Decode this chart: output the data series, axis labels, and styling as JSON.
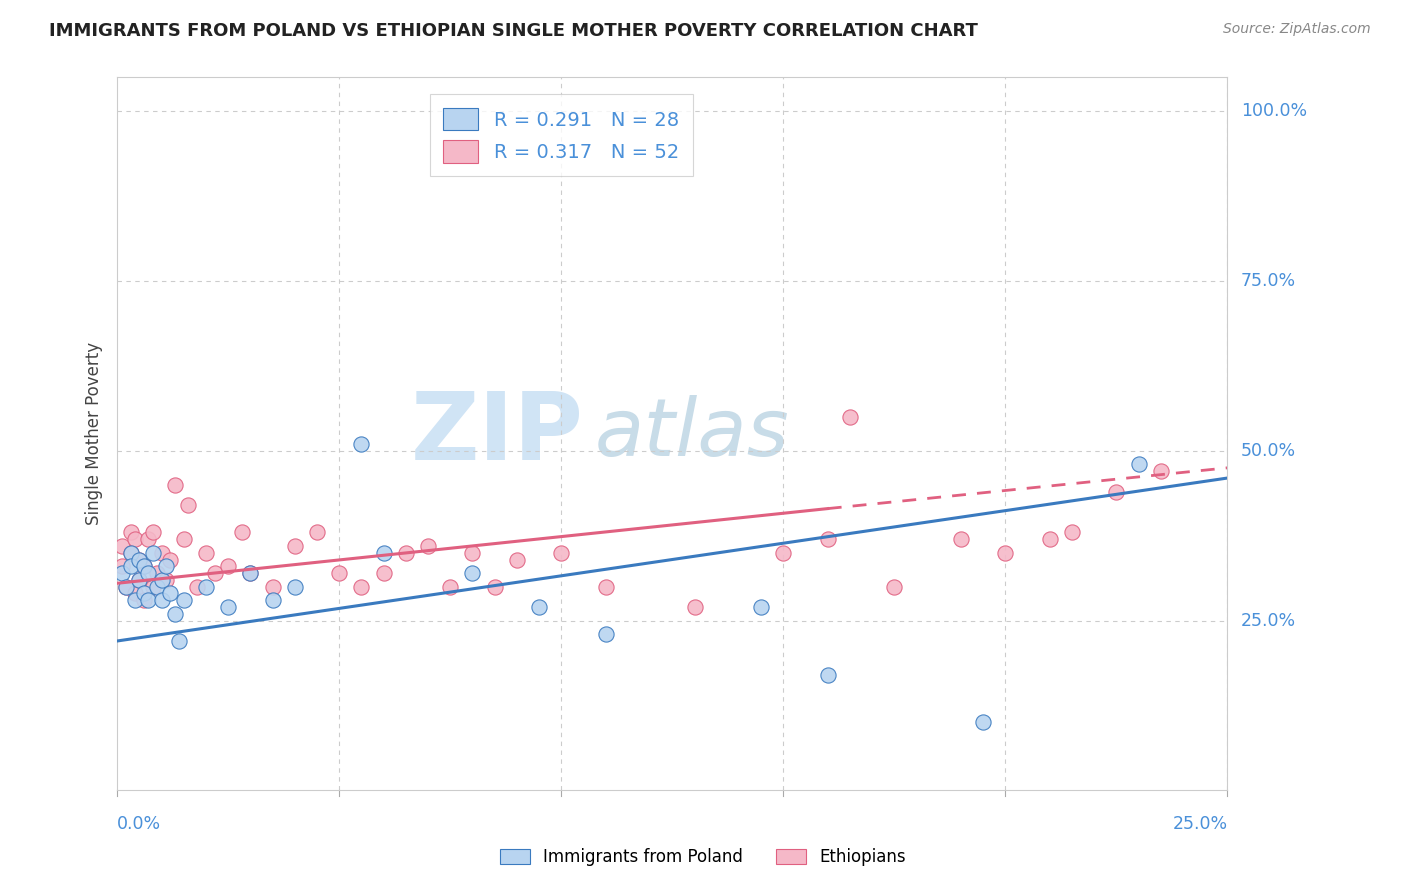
{
  "title": "IMMIGRANTS FROM POLAND VS ETHIOPIAN SINGLE MOTHER POVERTY CORRELATION CHART",
  "source": "Source: ZipAtlas.com",
  "ylabel": "Single Mother Poverty",
  "xlim": [
    0,
    0.25
  ],
  "ylim": [
    0,
    1.05
  ],
  "poland_color": "#b8d4f0",
  "ethiopia_color": "#f5b8c8",
  "poland_line_color": "#3a7abf",
  "ethiopia_line_color": "#e06080",
  "watermark_color": "#d0e4f5",
  "poland_scatter": {
    "x": [
      0.001,
      0.002,
      0.003,
      0.003,
      0.004,
      0.005,
      0.005,
      0.006,
      0.006,
      0.007,
      0.007,
      0.008,
      0.009,
      0.01,
      0.01,
      0.011,
      0.012,
      0.013,
      0.014,
      0.015,
      0.02,
      0.025,
      0.03,
      0.035,
      0.04,
      0.055,
      0.06,
      0.08,
      0.095,
      0.11,
      0.145,
      0.16,
      0.195,
      0.23
    ],
    "y": [
      0.32,
      0.3,
      0.35,
      0.33,
      0.28,
      0.31,
      0.34,
      0.33,
      0.29,
      0.32,
      0.28,
      0.35,
      0.3,
      0.31,
      0.28,
      0.33,
      0.29,
      0.26,
      0.22,
      0.28,
      0.3,
      0.27,
      0.32,
      0.28,
      0.3,
      0.51,
      0.35,
      0.32,
      0.27,
      0.23,
      0.27,
      0.17,
      0.1,
      0.48
    ]
  },
  "ethiopia_scatter": {
    "x": [
      0.001,
      0.001,
      0.002,
      0.003,
      0.003,
      0.004,
      0.004,
      0.005,
      0.005,
      0.006,
      0.006,
      0.007,
      0.008,
      0.008,
      0.009,
      0.01,
      0.011,
      0.012,
      0.013,
      0.015,
      0.016,
      0.018,
      0.02,
      0.022,
      0.025,
      0.028,
      0.03,
      0.035,
      0.04,
      0.045,
      0.05,
      0.055,
      0.06,
      0.065,
      0.07,
      0.075,
      0.08,
      0.085,
      0.09,
      0.1,
      0.11,
      0.13,
      0.15,
      0.16,
      0.165,
      0.175,
      0.19,
      0.2,
      0.21,
      0.215,
      0.225,
      0.235
    ],
    "y": [
      0.33,
      0.36,
      0.3,
      0.35,
      0.38,
      0.29,
      0.37,
      0.31,
      0.34,
      0.33,
      0.28,
      0.37,
      0.3,
      0.38,
      0.32,
      0.35,
      0.31,
      0.34,
      0.45,
      0.37,
      0.42,
      0.3,
      0.35,
      0.32,
      0.33,
      0.38,
      0.32,
      0.3,
      0.36,
      0.38,
      0.32,
      0.3,
      0.32,
      0.35,
      0.36,
      0.3,
      0.35,
      0.3,
      0.34,
      0.35,
      0.3,
      0.27,
      0.35,
      0.37,
      0.55,
      0.3,
      0.37,
      0.35,
      0.37,
      0.38,
      0.44,
      0.47
    ]
  },
  "poland_line": {
    "x0": 0.0,
    "y0": 0.22,
    "x1": 0.25,
    "y1": 0.46
  },
  "ethiopia_line_solid": {
    "x0": 0.0,
    "y0": 0.305,
    "x1": 0.16,
    "y1": 0.415
  },
  "ethiopia_line_dashed": {
    "x0": 0.16,
    "y0": 0.415,
    "x1": 0.25,
    "y1": 0.475
  }
}
